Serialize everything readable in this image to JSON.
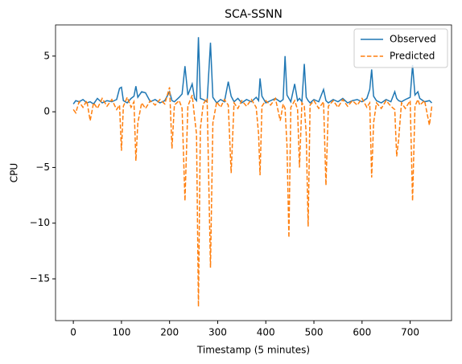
{
  "chart_data": {
    "type": "line",
    "title": "SCA-SSNN",
    "xlabel": "Timestamp (5 minutes)",
    "ylabel": "CPU",
    "x": [
      0,
      5,
      12,
      20,
      28,
      35,
      42,
      50,
      60,
      70,
      80,
      90,
      96,
      100,
      104,
      112,
      120,
      126,
      130,
      134,
      142,
      150,
      160,
      170,
      180,
      190,
      200,
      205,
      210,
      220,
      226,
      232,
      238,
      247,
      252,
      256,
      260,
      264,
      270,
      278,
      285,
      290,
      298,
      306,
      314,
      322,
      328,
      334,
      342,
      350,
      360,
      370,
      380,
      385,
      388,
      392,
      400,
      410,
      420,
      430,
      436,
      440,
      444,
      448,
      452,
      460,
      466,
      470,
      475,
      480,
      484,
      488,
      492,
      500,
      510,
      520,
      525,
      530,
      540,
      550,
      560,
      570,
      580,
      590,
      600,
      610,
      616,
      620,
      624,
      630,
      640,
      650,
      660,
      668,
      672,
      676,
      682,
      690,
      700,
      705,
      710,
      716,
      720,
      730,
      740,
      745
    ],
    "series": [
      {
        "name": "Observed",
        "color": "#1f77b4",
        "linestyle": "solid",
        "values": [
          0.7,
          1.0,
          0.9,
          1.1,
          0.8,
          0.9,
          0.7,
          1.2,
          0.8,
          1.0,
          0.9,
          1.1,
          2.1,
          2.2,
          1.0,
          0.8,
          1.2,
          1.4,
          2.3,
          1.3,
          1.8,
          1.7,
          0.9,
          1.1,
          0.8,
          1.0,
          1.8,
          1.0,
          0.9,
          1.3,
          1.6,
          4.1,
          1.5,
          2.5,
          1.2,
          1.0,
          6.7,
          1.2,
          1.1,
          0.9,
          6.2,
          1.3,
          0.8,
          1.1,
          0.9,
          2.7,
          1.4,
          0.9,
          1.2,
          0.8,
          1.1,
          0.9,
          1.3,
          1.0,
          3.0,
          1.4,
          0.8,
          1.0,
          1.2,
          0.9,
          1.1,
          5.0,
          1.5,
          1.2,
          0.9,
          2.5,
          1.0,
          1.2,
          0.9,
          4.3,
          1.3,
          1.0,
          0.8,
          1.1,
          0.9,
          2.0,
          1.0,
          0.8,
          1.1,
          0.9,
          1.2,
          0.8,
          1.0,
          1.1,
          0.9,
          1.2,
          2.0,
          3.8,
          1.4,
          1.0,
          0.8,
          1.1,
          0.9,
          1.8,
          1.2,
          1.0,
          0.9,
          1.1,
          1.3,
          4.2,
          1.5,
          1.8,
          1.2,
          0.9,
          1.0,
          0.8
        ]
      },
      {
        "name": "Predicted",
        "color": "#ff7f0e",
        "linestyle": "dashed",
        "values": [
          0.2,
          -0.1,
          0.9,
          0.4,
          1.0,
          -0.8,
          0.8,
          0.3,
          1.2,
          0.5,
          1.1,
          0.2,
          0.6,
          -3.5,
          0.5,
          1.3,
          0.4,
          0.9,
          -4.4,
          -1.0,
          0.8,
          0.3,
          1.0,
          0.6,
          1.1,
          0.7,
          2.2,
          -3.3,
          0.6,
          1.0,
          0.3,
          -8.0,
          0.5,
          1.5,
          -0.5,
          -2.0,
          -17.5,
          -1.5,
          0.7,
          1.2,
          -14.0,
          -1.0,
          0.9,
          0.4,
          1.1,
          0.6,
          -5.5,
          0.8,
          0.3,
          1.0,
          0.5,
          1.1,
          0.4,
          -2.0,
          -5.7,
          0.5,
          1.0,
          0.6,
          1.2,
          -0.8,
          0.7,
          0.3,
          -3.0,
          -11.3,
          0.4,
          1.0,
          0.2,
          -5.0,
          0.8,
          0.5,
          -2.0,
          -10.3,
          0.6,
          1.0,
          0.3,
          0.9,
          -6.6,
          0.5,
          1.0,
          0.4,
          1.1,
          0.5,
          1.0,
          0.6,
          1.2,
          0.4,
          0.8,
          -5.9,
          -1.0,
          0.8,
          0.3,
          1.0,
          0.5,
          0.2,
          -4.0,
          -2.5,
          0.8,
          0.3,
          1.0,
          -8.0,
          0.5,
          1.1,
          0.6,
          1.0,
          -1.2,
          0.5
        ]
      }
    ],
    "xlim": [
      -37,
      786
    ],
    "ylim": [
      -18.75,
      7.8
    ],
    "xticks": [
      0,
      100,
      200,
      300,
      400,
      500,
      600,
      700
    ],
    "yticks": [
      5,
      0,
      {
        "value": -5,
        "label": "−5"
      },
      {
        "value": -10,
        "label": "−10"
      },
      {
        "value": -15,
        "label": "−15"
      }
    ],
    "legend": "upper right"
  }
}
